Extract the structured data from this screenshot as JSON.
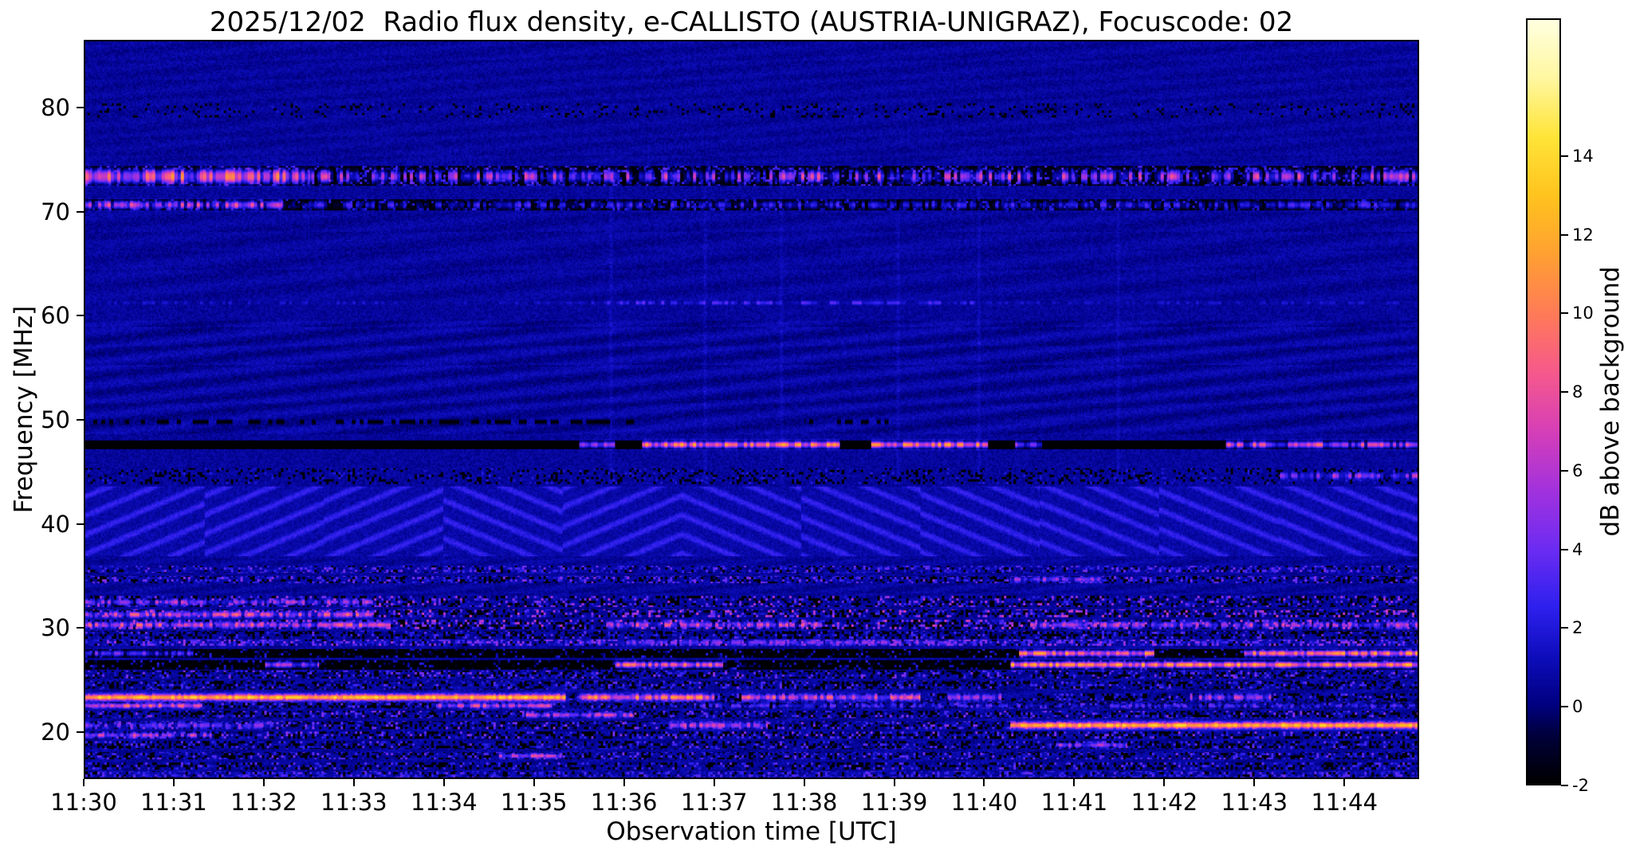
{
  "chart_data": {
    "type": "heatmap",
    "title": "2025/12/02  Radio flux density, e-CALLISTO (AUSTRIA-UNIGRAZ), Focuscode: 02",
    "xlabel": "Observation time [UTC]",
    "ylabel": "Frequency [MHz]",
    "colorbar_label": "dB above background",
    "x_ticks": [
      [
        "11:30",
        0
      ],
      [
        "11:31",
        1
      ],
      [
        "11:32",
        2
      ],
      [
        "11:33",
        3
      ],
      [
        "11:34",
        4
      ],
      [
        "11:35",
        5
      ],
      [
        "11:36",
        6
      ],
      [
        "11:37",
        7
      ],
      [
        "11:38",
        8
      ],
      [
        "11:39",
        9
      ],
      [
        "11:40",
        10
      ],
      [
        "11:41",
        11
      ],
      [
        "11:42",
        12
      ],
      [
        "11:43",
        13
      ],
      [
        "11:44",
        14
      ]
    ],
    "x_total_minutes": 14.83,
    "y_range": [
      15.5,
      86.5
    ],
    "y_ticks": [
      20,
      30,
      40,
      50,
      60,
      70,
      80
    ],
    "colorbar_range": [
      -2,
      17.5
    ],
    "colorbar_ticks": [
      -2,
      0,
      2,
      4,
      6,
      8,
      10,
      12,
      14
    ],
    "colormap": [
      [
        -2,
        "#000000"
      ],
      [
        -0.8,
        "#00003a"
      ],
      [
        0,
        "#000080"
      ],
      [
        1.2,
        "#0d0dbb"
      ],
      [
        2.5,
        "#2e20ee"
      ],
      [
        4,
        "#6d2cf2"
      ],
      [
        5.5,
        "#a332dd"
      ],
      [
        7,
        "#d63fb7"
      ],
      [
        8.5,
        "#f6598b"
      ],
      [
        10,
        "#ff7b57"
      ],
      [
        11.5,
        "#ffa032"
      ],
      [
        13,
        "#ffc31e"
      ],
      [
        14.5,
        "#ffe438"
      ],
      [
        16,
        "#fff7a0"
      ],
      [
        17.5,
        "#ffffe0"
      ]
    ],
    "base": {
      "level": 0.55,
      "noise": 0.5
    },
    "features": [
      {
        "kind": "ripple",
        "f0": 48.6,
        "f1": 59.6,
        "amp": 0.5,
        "kx": 0.03,
        "ky": 0.3
      },
      {
        "kind": "ripple",
        "f0": 61.5,
        "f1": 70.0,
        "amp": 0.28,
        "kx": 0.024,
        "ky": 0.26
      },
      {
        "kind": "ripple",
        "f0": 74.8,
        "f1": 86.5,
        "amp": 0.22,
        "kx": 0.028,
        "ky": 0.34
      },
      {
        "kind": "ripple",
        "f0": 15.5,
        "f1": 36.6,
        "amp": 0.3,
        "kx": 0.05,
        "ky": 0.45
      },
      {
        "kind": "chevron",
        "f0": 36.8,
        "f1": 43.6,
        "amp": 1.8,
        "kx": 0.11,
        "ky": 0.26,
        "block": 150
      },
      {
        "kind": "vstreaks",
        "times": [
          5.85,
          6.9,
          7.75,
          9.05,
          9.95,
          11.5
        ],
        "f0": 43.8,
        "f1": 72.5,
        "amp": 0.9
      },
      {
        "kind": "speckle",
        "f0": 79.2,
        "f1": 80.6,
        "density": 0.22,
        "dark": 0.1,
        "vmin": -1.5,
        "vmax": 1.6
      },
      {
        "kind": "blackband",
        "f0": 72.6,
        "f1": 74.5
      },
      {
        "kind": "speckle",
        "f0": 72.6,
        "f1": 74.5,
        "density": 0.55,
        "dark": 0.25,
        "vmin": -2,
        "vmax": 3.5
      },
      {
        "kind": "hline",
        "fc": 73.5,
        "hw": 0.75,
        "segments": [
          [
            0,
            14.83,
            3,
            5.5
          ],
          [
            0,
            2.5,
            6.5,
            5
          ]
        ]
      },
      {
        "kind": "blackband",
        "f0": 70.2,
        "f1": 71.3
      },
      {
        "kind": "speckle",
        "f0": 70.2,
        "f1": 71.3,
        "density": 0.45,
        "dark": 0.3,
        "vmin": -2,
        "vmax": 2.5
      },
      {
        "kind": "hline",
        "fc": 70.75,
        "hw": 0.5,
        "segments": [
          [
            0,
            2.2,
            4.5,
            4.5
          ],
          [
            2.2,
            14.83,
            0.8,
            3
          ]
        ]
      },
      {
        "kind": "hline",
        "fc": 61.3,
        "hw": 0.22,
        "segments": [
          [
            0,
            14.83,
            0.5,
            1.6
          ],
          [
            5.6,
            9.9,
            1.8,
            2.4
          ]
        ]
      },
      {
        "kind": "darkline",
        "fc": 49.8,
        "hw": 0.3,
        "density": 0.5,
        "segments": [
          [
            0,
            6.2
          ],
          [
            8.0,
            9.0
          ]
        ]
      },
      {
        "kind": "blackband",
        "f0": 47.15,
        "f1": 48.05
      },
      {
        "kind": "hline",
        "fc": 47.6,
        "hw": 0.42,
        "segments": [
          [
            5.5,
            5.9,
            5,
            3
          ],
          [
            6.2,
            8.4,
            8.5,
            4.5
          ],
          [
            8.75,
            10.05,
            8.5,
            4.5
          ],
          [
            10.35,
            10.65,
            4,
            3
          ],
          [
            12.7,
            14.83,
            5.5,
            4.5
          ]
        ]
      },
      {
        "kind": "speckle",
        "f0": 43.8,
        "f1": 45.3,
        "density": 0.4,
        "dark": 0.18,
        "vmin": -1.8,
        "vmax": 2.2
      },
      {
        "kind": "hline",
        "fc": 44.6,
        "hw": 0.4,
        "segments": [
          [
            13.3,
            14.83,
            3.5,
            4
          ]
        ]
      },
      {
        "kind": "speckle",
        "f0": 35.2,
        "f1": 35.9,
        "density": 0.55,
        "dark": 0.12,
        "vmin": 0,
        "vmax": 4.5
      },
      {
        "kind": "speckle",
        "f0": 34.2,
        "f1": 34.9,
        "density": 0.5,
        "dark": 0.2,
        "vmin": 0,
        "vmax": 5
      },
      {
        "kind": "hline",
        "fc": 34.6,
        "hw": 0.3,
        "segments": [
          [
            10.3,
            11.3,
            4,
            3
          ]
        ]
      },
      {
        "kind": "speckle",
        "f0": 31.9,
        "f1": 33.0,
        "density": 0.5,
        "dark": 0.25,
        "vmin": -2,
        "vmax": 6
      },
      {
        "kind": "hline",
        "fc": 32.4,
        "hw": 0.35,
        "segments": [
          [
            0,
            3.2,
            3.5,
            4
          ]
        ]
      },
      {
        "kind": "speckle",
        "f0": 30.9,
        "f1": 31.7,
        "density": 0.55,
        "dark": 0.25,
        "vmin": -2,
        "vmax": 7
      },
      {
        "kind": "hline",
        "fc": 31.2,
        "hw": 0.35,
        "segments": [
          [
            0,
            3.2,
            5.5,
            4.5
          ]
        ]
      },
      {
        "kind": "speckle",
        "f0": 29.8,
        "f1": 30.7,
        "density": 0.6,
        "dark": 0.3,
        "vmin": -2,
        "vmax": 7
      },
      {
        "kind": "hline",
        "fc": 30.2,
        "hw": 0.38,
        "segments": [
          [
            0,
            3.4,
            5.5,
            4.5
          ],
          [
            5.8,
            8.2,
            4.5,
            4.5
          ],
          [
            10.5,
            14.83,
            3.5,
            4.5
          ]
        ]
      },
      {
        "kind": "speckle",
        "f0": 28.9,
        "f1": 29.6,
        "density": 0.45,
        "dark": 0.3,
        "vmin": -2,
        "vmax": 4
      },
      {
        "kind": "speckle",
        "f0": 28.2,
        "f1": 28.8,
        "density": 0.75,
        "dark": 0.08,
        "vmin": 0.5,
        "vmax": 5.5
      },
      {
        "kind": "hline",
        "fc": 28.5,
        "hw": 0.28,
        "segments": [
          [
            5.5,
            10,
            2.5,
            3.5
          ]
        ]
      },
      {
        "kind": "blackband",
        "f0": 27.0,
        "f1": 27.9
      },
      {
        "kind": "speckle",
        "f0": 27.0,
        "f1": 27.9,
        "density": 0.3,
        "dark": 0.4,
        "vmin": -2,
        "vmax": 2.5
      },
      {
        "kind": "hline",
        "fc": 27.45,
        "hw": 0.38,
        "segments": [
          [
            0,
            1.2,
            2.5,
            3
          ],
          [
            10.4,
            11.9,
            8.5,
            4
          ],
          [
            12.9,
            14.83,
            8.5,
            4.5
          ]
        ]
      },
      {
        "kind": "blackband",
        "f0": 25.9,
        "f1": 26.8
      },
      {
        "kind": "speckle",
        "f0": 25.9,
        "f1": 26.8,
        "density": 0.3,
        "dark": 0.4,
        "vmin": -2,
        "vmax": 2.5
      },
      {
        "kind": "hline",
        "fc": 26.35,
        "hw": 0.38,
        "segments": [
          [
            2.0,
            2.6,
            4.5,
            3
          ],
          [
            5.9,
            7.1,
            7.5,
            4
          ],
          [
            10.3,
            14.83,
            9.5,
            4
          ]
        ]
      },
      {
        "kind": "speckle",
        "f0": 25.0,
        "f1": 25.8,
        "density": 0.5,
        "dark": 0.28,
        "vmin": -2,
        "vmax": 5
      },
      {
        "kind": "speckle",
        "f0": 24.0,
        "f1": 24.8,
        "density": 0.5,
        "dark": 0.28,
        "vmin": -1.5,
        "vmax": 4
      },
      {
        "kind": "speckle",
        "f0": 22.8,
        "f1": 23.6,
        "density": 0.45,
        "dark": 0.3,
        "vmin": -2,
        "vmax": 4
      },
      {
        "kind": "hline",
        "fc": 23.2,
        "hw": 0.4,
        "segments": [
          [
            0,
            5.35,
            12.5,
            2.2
          ],
          [
            5.5,
            7.0,
            8.5,
            4
          ],
          [
            7.3,
            9.3,
            6.5,
            4
          ],
          [
            9.6,
            10.2,
            4.5,
            3
          ],
          [
            12.3,
            13.2,
            4.5,
            4
          ]
        ]
      },
      {
        "kind": "speckle",
        "f0": 22.1,
        "f1": 22.7,
        "density": 0.5,
        "dark": 0.3,
        "vmin": -2,
        "vmax": 4
      },
      {
        "kind": "hline",
        "fc": 22.4,
        "hw": 0.3,
        "segments": [
          [
            0,
            1.3,
            7.5,
            3.5
          ],
          [
            3.9,
            5.2,
            5.5,
            4
          ],
          [
            6.5,
            14.83,
            1.5,
            3
          ]
        ]
      },
      {
        "kind": "speckle",
        "f0": 21.2,
        "f1": 21.9,
        "density": 0.5,
        "dark": 0.3,
        "vmin": -2,
        "vmax": 5
      },
      {
        "kind": "hline",
        "fc": 21.5,
        "hw": 0.3,
        "segments": [
          [
            4.9,
            6.1,
            5,
            4
          ]
        ]
      },
      {
        "kind": "speckle",
        "f0": 20.1,
        "f1": 20.9,
        "density": 0.55,
        "dark": 0.3,
        "vmin": -2,
        "vmax": 5
      },
      {
        "kind": "hline",
        "fc": 20.5,
        "hw": 0.4,
        "segments": [
          [
            0,
            2.2,
            2.5,
            3
          ],
          [
            6.5,
            7.6,
            5,
            3.5
          ],
          [
            10.3,
            14.83,
            12,
            2.5
          ]
        ]
      },
      {
        "kind": "speckle",
        "f0": 19.2,
        "f1": 19.9,
        "density": 0.55,
        "dark": 0.32,
        "vmin": -2,
        "vmax": 5
      },
      {
        "kind": "hline",
        "fc": 19.55,
        "hw": 0.3,
        "segments": [
          [
            0,
            1.4,
            4.5,
            4
          ]
        ]
      },
      {
        "kind": "speckle",
        "f0": 18.2,
        "f1": 19.0,
        "density": 0.55,
        "dark": 0.3,
        "vmin": -2,
        "vmax": 4
      },
      {
        "kind": "hline",
        "fc": 18.6,
        "hw": 0.28,
        "segments": [
          [
            10.8,
            11.6,
            4,
            3
          ]
        ]
      },
      {
        "kind": "speckle",
        "f0": 17.2,
        "f1": 17.9,
        "density": 0.55,
        "dark": 0.25,
        "vmin": -1.5,
        "vmax": 4.5
      },
      {
        "kind": "hline",
        "fc": 17.55,
        "hw": 0.28,
        "segments": [
          [
            4.6,
            5.3,
            5.5,
            3
          ]
        ]
      },
      {
        "kind": "speckle",
        "f0": 16.2,
        "f1": 16.9,
        "density": 0.55,
        "dark": 0.3,
        "vmin": -2,
        "vmax": 4
      },
      {
        "kind": "speckle",
        "f0": 15.5,
        "f1": 16.1,
        "density": 0.7,
        "dark": 0.12,
        "vmin": 0,
        "vmax": 4
      }
    ]
  }
}
